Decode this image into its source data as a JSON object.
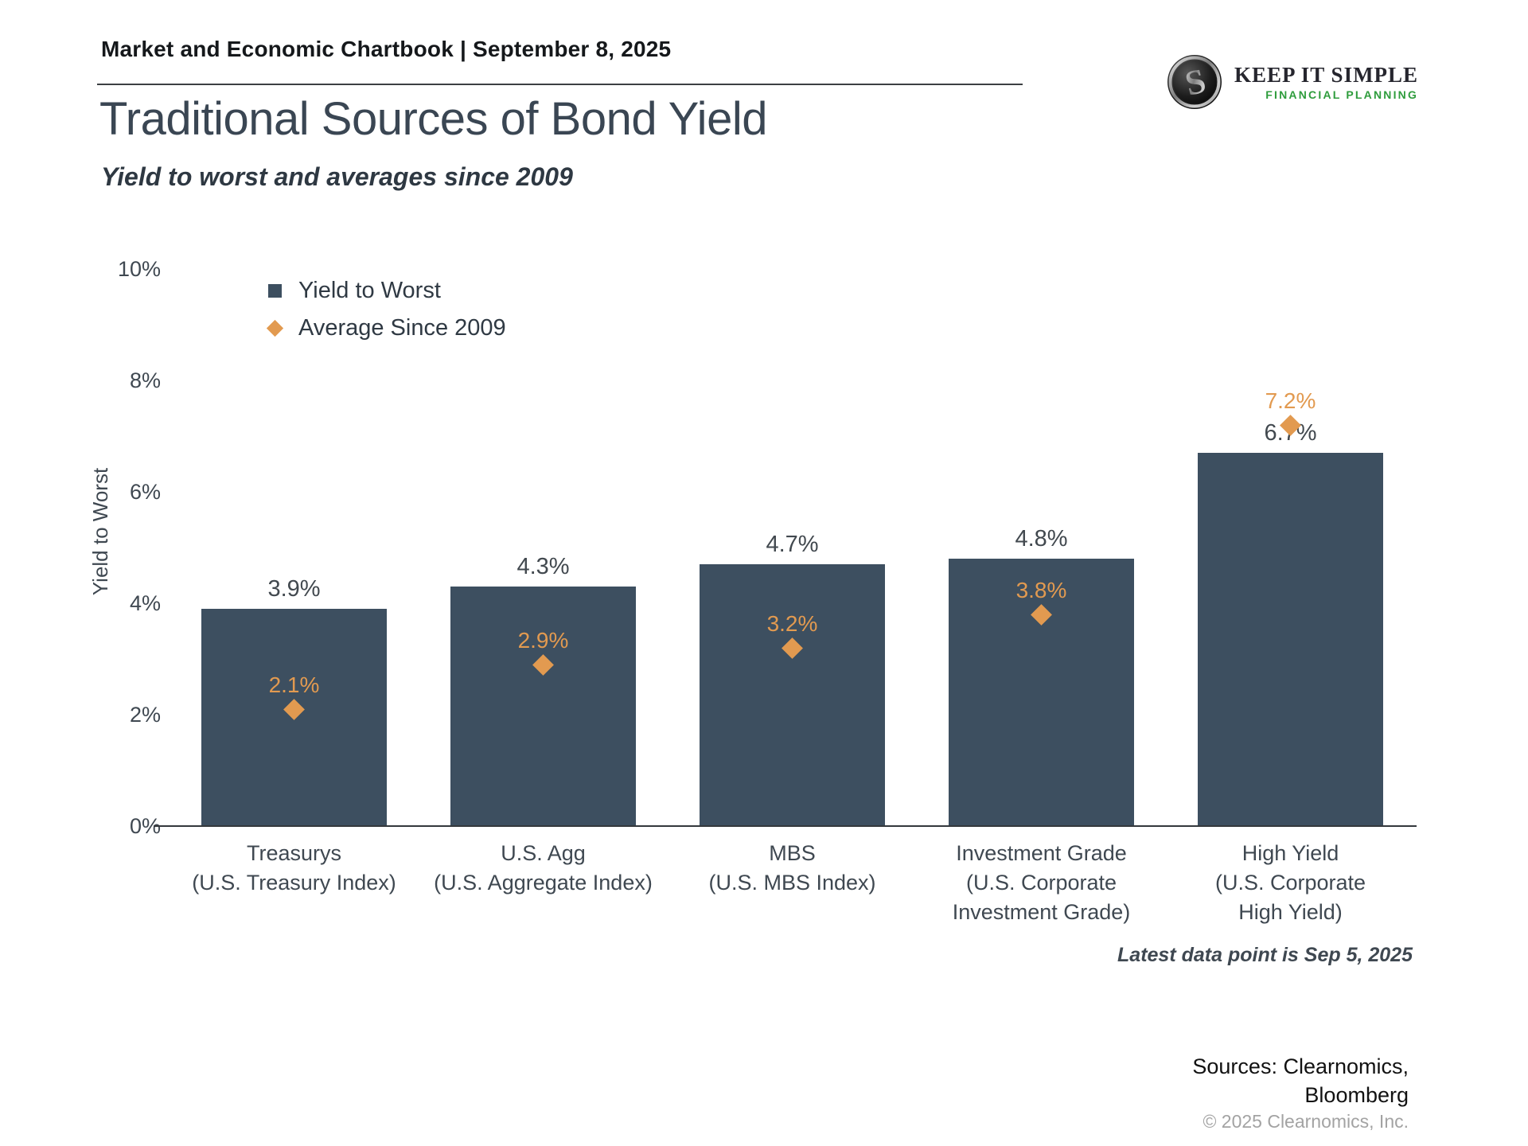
{
  "header": {
    "chartbook": "Market and Economic Chartbook | September 8, 2025"
  },
  "logo": {
    "name": "KEEP IT SIMPLE",
    "tagline": "FINANCIAL PLANNING",
    "tagline_color": "#2e9c3c"
  },
  "title": "Traditional Sources of Bond Yield",
  "subtitle": "Yield to worst and averages since 2009",
  "note": "Latest data point is Sep 5, 2025",
  "footer": {
    "sources_line1": "Sources: Clearnomics,",
    "sources_line2": "Bloomberg",
    "copyright": "© 2025 Clearnomics, Inc."
  },
  "chart_data": {
    "type": "bar",
    "title": "Traditional Sources of Bond Yield",
    "subtitle": "Yield to worst and averages since 2009",
    "xlabel": "",
    "ylabel": "Yield to Worst",
    "ylim": [
      0,
      10
    ],
    "yticks": [
      "0%",
      "2%",
      "4%",
      "6%",
      "8%",
      "10%"
    ],
    "grid": false,
    "legend_position": "top-left",
    "categories": [
      [
        "Treasurys",
        "(U.S. Treasury Index)"
      ],
      [
        "U.S. Agg",
        "(U.S. Aggregate Index)"
      ],
      [
        "MBS",
        "(U.S. MBS Index)"
      ],
      [
        "Investment Grade",
        "(U.S. Corporate",
        "Investment Grade)"
      ],
      [
        "High Yield",
        "(U.S. Corporate",
        "High Yield)"
      ]
    ],
    "series": [
      {
        "name": "Yield to Worst",
        "marker": "square",
        "color": "#3d4f60",
        "values": [
          3.9,
          4.3,
          4.7,
          4.8,
          6.7
        ],
        "labels": [
          "3.9%",
          "4.3%",
          "4.7%",
          "4.8%",
          "6.7%"
        ]
      },
      {
        "name": "Average Since 2009",
        "marker": "diamond",
        "color": "#e29a50",
        "values": [
          2.1,
          2.9,
          3.2,
          3.8,
          7.2
        ],
        "labels": [
          "2.1%",
          "2.9%",
          "3.2%",
          "3.8%",
          "7.2%"
        ]
      }
    ]
  }
}
